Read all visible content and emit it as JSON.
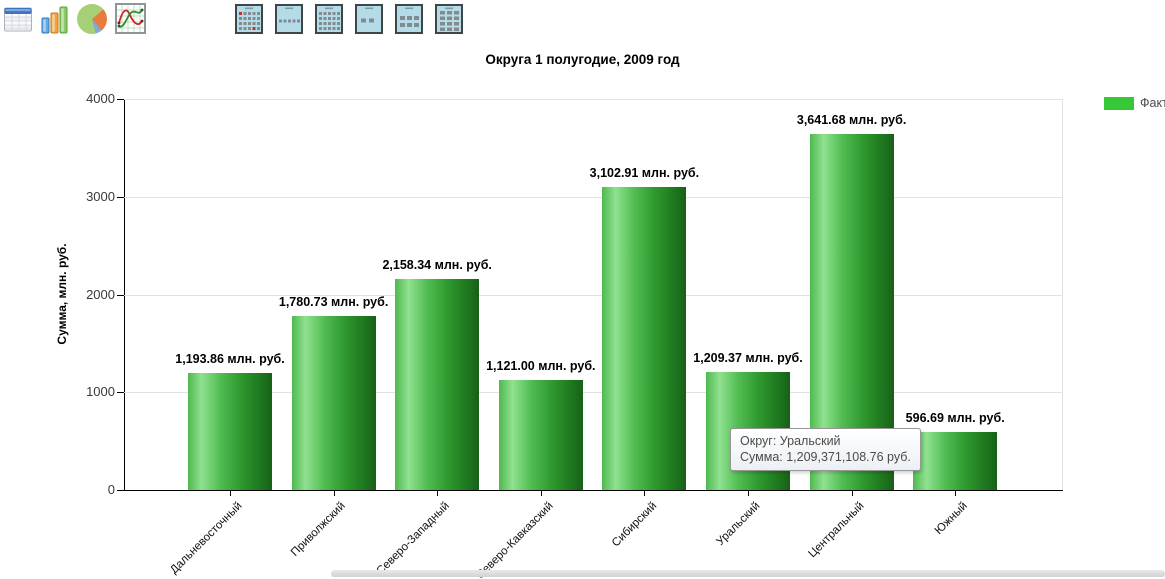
{
  "toolbar": {
    "chart_type_icons": [
      {
        "name": "table-icon"
      },
      {
        "name": "bar-chart-icon"
      },
      {
        "name": "pie-chart-icon"
      },
      {
        "name": "line-chart-icon"
      }
    ],
    "view_icons": [
      {
        "name": "calendar-day-marks-icon"
      },
      {
        "name": "calendar-single-row-icon"
      },
      {
        "name": "calendar-full-grid-icon"
      },
      {
        "name": "grid-two-cells-icon"
      },
      {
        "name": "grid-six-cells-icon"
      },
      {
        "name": "grid-twelve-cells-icon"
      }
    ]
  },
  "chart_data": {
    "type": "bar",
    "title": "Округа 1 полугодие, 2009 год",
    "xlabel": "",
    "ylabel": "Сумма, млн. руб.",
    "ylim": [
      0,
      4000
    ],
    "yticks": [
      0,
      1000,
      2000,
      3000,
      4000
    ],
    "grid": true,
    "legend_position": "top-right",
    "categories": [
      "Дальневосточный",
      "Приволжский",
      "Северо-Западный",
      "Северо-Кавказский",
      "Сибирский",
      "Уральский",
      "Центральный",
      "Южный"
    ],
    "series": [
      {
        "name": "Факт",
        "color": "#37c837",
        "values": [
          1193.86,
          1780.73,
          2158.34,
          1121.0,
          3102.91,
          1209.37,
          3641.68,
          596.69
        ]
      }
    ],
    "bar_value_labels": [
      "1,193.86 млн. руб.",
      "1,780.73 млн. руб.",
      "2,158.34 млн. руб.",
      "1,121.00 млн. руб.",
      "3,102.91 млн. руб.",
      "1,209.37 млн. руб.",
      "3,641.68 млн. руб.",
      "596.69 млн. руб."
    ]
  },
  "legend": {
    "label": "Факт",
    "color": "#37c837"
  },
  "tooltip": {
    "district_line": "Округ: Уральский",
    "sum_line": "Сумма: 1,209,371,108.76 руб."
  }
}
